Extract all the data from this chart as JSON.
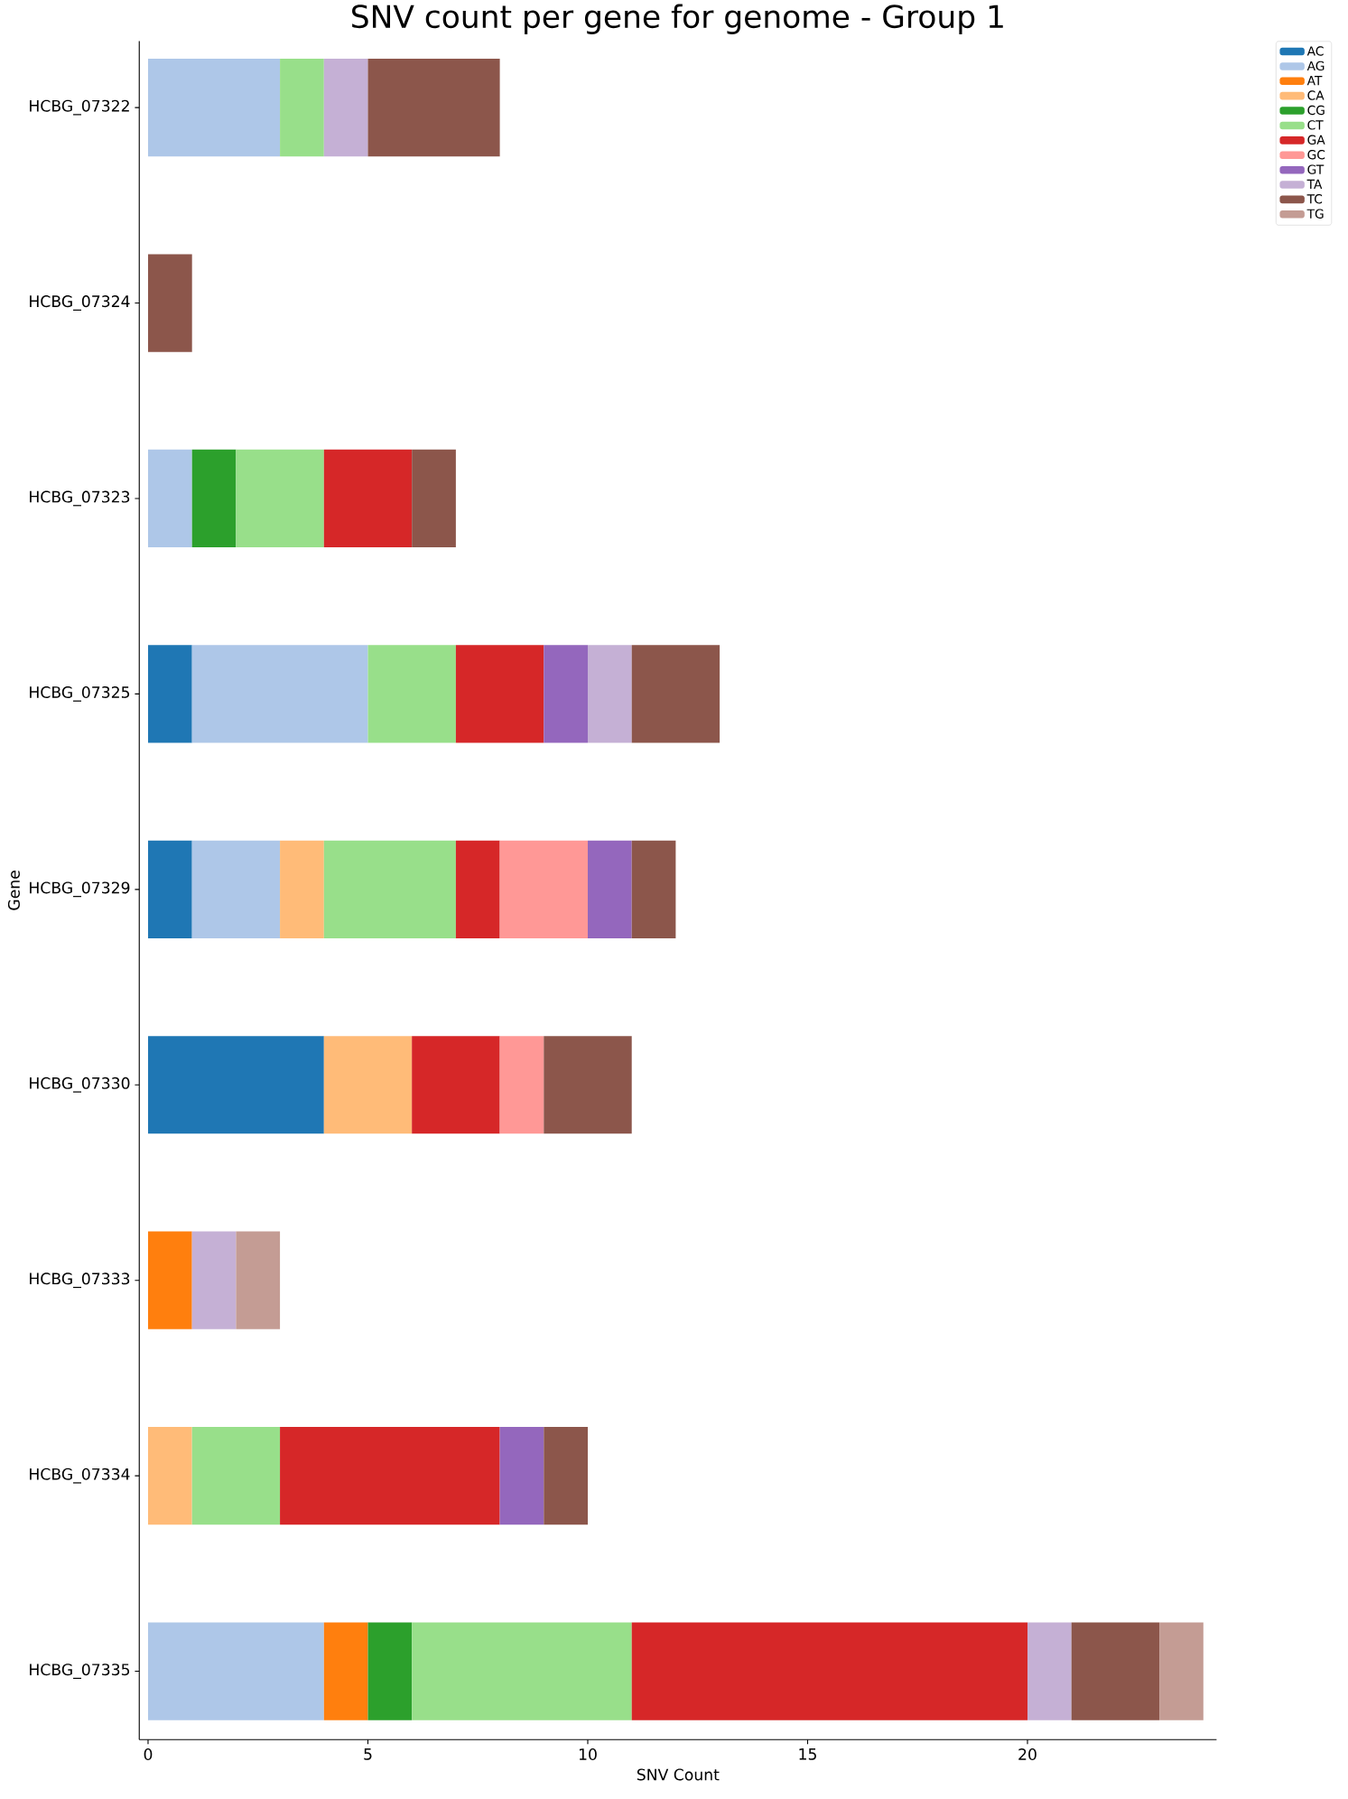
{
  "chart_data": {
    "type": "bar",
    "orientation": "horizontal",
    "stacked": true,
    "title": "SNV count per gene for genome - Group 1",
    "xlabel": "SNV Count",
    "ylabel": "Gene",
    "categories": [
      "HCBG_07322",
      "HCBG_07324",
      "HCBG_07323",
      "HCBG_07325",
      "HCBG_07329",
      "HCBG_07330",
      "HCBG_07333",
      "HCBG_07334",
      "HCBG_07335"
    ],
    "xlim": [
      -0.2,
      24.3
    ],
    "xticks": [
      0,
      5,
      10,
      15,
      20
    ],
    "legend": "top right",
    "series": [
      {
        "name": "AC",
        "color": "#1f77b4",
        "values": [
          null,
          null,
          null,
          1,
          1,
          4,
          null,
          null,
          null
        ]
      },
      {
        "name": "AG",
        "color": "#aec7e8",
        "values": [
          3,
          null,
          1,
          4,
          2,
          null,
          null,
          null,
          4
        ]
      },
      {
        "name": "AT",
        "color": "#ff7f0e",
        "values": [
          null,
          null,
          null,
          null,
          null,
          null,
          1,
          null,
          1
        ]
      },
      {
        "name": "CA",
        "color": "#ffbb78",
        "values": [
          null,
          null,
          null,
          null,
          1,
          2,
          null,
          1,
          null
        ]
      },
      {
        "name": "CG",
        "color": "#2ca02c",
        "values": [
          null,
          null,
          1,
          null,
          null,
          null,
          null,
          null,
          1
        ]
      },
      {
        "name": "CT",
        "color": "#98df8a",
        "values": [
          1,
          null,
          2,
          2,
          3,
          null,
          null,
          2,
          5
        ]
      },
      {
        "name": "GA",
        "color": "#d62728",
        "values": [
          null,
          null,
          2,
          2,
          1,
          2,
          null,
          5,
          9
        ]
      },
      {
        "name": "GC",
        "color": "#ff9896",
        "values": [
          null,
          null,
          null,
          null,
          2,
          1,
          null,
          null,
          null
        ]
      },
      {
        "name": "GT",
        "color": "#9467bd",
        "values": [
          null,
          null,
          null,
          1,
          1,
          null,
          null,
          1,
          null
        ]
      },
      {
        "name": "TA",
        "color": "#c5b0d5",
        "values": [
          1,
          null,
          null,
          1,
          null,
          null,
          1,
          null,
          1
        ]
      },
      {
        "name": "TC",
        "color": "#8c564b",
        "values": [
          3,
          1,
          1,
          2,
          1,
          2,
          null,
          1,
          2
        ]
      },
      {
        "name": "TG",
        "color": "#c49c94",
        "values": [
          null,
          null,
          null,
          null,
          null,
          null,
          1,
          null,
          1
        ]
      }
    ]
  }
}
